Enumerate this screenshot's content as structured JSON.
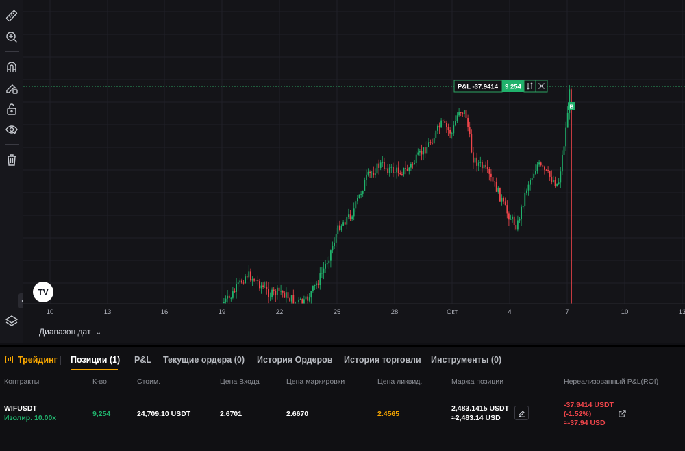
{
  "toolbar": {
    "tools": [
      "ruler-icon",
      "zoom-in-icon",
      "magnet-icon",
      "lock-drawing-icon",
      "lock-icon",
      "eye-icon",
      "trash-icon",
      "layers-icon"
    ]
  },
  "chart": {
    "logo": "TV",
    "date_range_label": "Диапазон дат",
    "x_ticks": [
      "10",
      "13",
      "16",
      "19",
      "22",
      "25",
      "28",
      "Окт",
      "4",
      "7",
      "10",
      "13"
    ],
    "position_line": {
      "pnl_label": "P&L -37.9414",
      "qty_label": "9 254",
      "marker_label": "B"
    },
    "colors": {
      "up": "#20b26c",
      "down": "#ef454a",
      "grid": "#202028",
      "position_line": "#2da462"
    }
  },
  "chart_data": {
    "type": "candlestick",
    "x": [
      "10",
      "13",
      "16",
      "19",
      "22",
      "25",
      "28",
      "Окт",
      "4",
      "7",
      "10",
      "13"
    ],
    "position_pnl": -37.9414,
    "position_qty": 9254,
    "position_side": "B"
  },
  "panel": {
    "brand_label": "Трейдинг",
    "tabs": [
      "Позиции (1)",
      "P&L",
      "Текущие ордера (0)",
      "История Ордеров",
      "История торговли",
      "Инструменты (0)"
    ],
    "columns": [
      "Контракты",
      "К-во",
      "Стоим.",
      "Цена Входа",
      "Цена маркировки",
      "Цена ликвид.",
      "Маржа позиции",
      "Нереализованный P&L(ROI)"
    ],
    "row": {
      "symbol": "WIFUSDT",
      "margin_mode": "Изолир. 10.00x",
      "qty": "9,254",
      "value": "24,709.10 USDT",
      "entry_price": "2.6701",
      "mark_price": "2.6670",
      "liq_price": "2.4565",
      "margin_usdt": "2,483.1415 USDT",
      "margin_usd": "≈2,483.14 USD",
      "pnl_usdt": "-37.9414 USDT",
      "pnl_roi": "(-1.52%)",
      "pnl_usd": "≈-37.94 USD"
    },
    "colors": {
      "accent": "#f7a600",
      "green": "#20b26c",
      "red": "#ef454a"
    }
  }
}
